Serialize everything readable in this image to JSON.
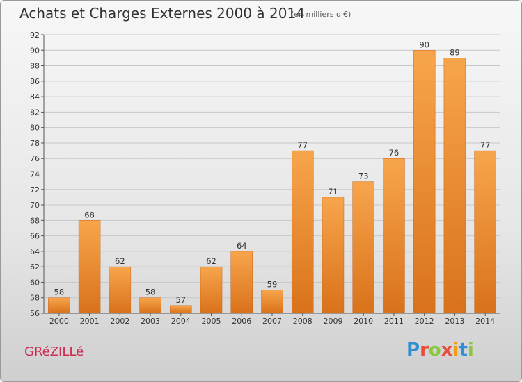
{
  "header": {
    "title": "Achats et Charges Externes 2000 à 2014",
    "units": "(en milliers d'€)"
  },
  "footer": {
    "commune": "GRéZILLé",
    "logo_letters": [
      "P",
      "r",
      "o",
      "x",
      "i",
      "t",
      "i"
    ],
    "logo_colors": [
      "#2f8fd1",
      "#e74c3c",
      "#8cc63f",
      "#e74c3c",
      "#f39c12",
      "#2f8fd1",
      "#8cc63f"
    ]
  },
  "colors": {
    "bar_top": "#f7a54c",
    "bar_bottom": "#d9721a",
    "grid": "#c8c8c8",
    "axis": "#555555",
    "commune_text": "#cc2a4f"
  },
  "chart_data": {
    "type": "bar",
    "title": "Achats et Charges Externes 2000 à 2014",
    "subtitle": "(en milliers d'€)",
    "xlabel": "",
    "ylabel": "",
    "categories": [
      "2000",
      "2001",
      "2002",
      "2003",
      "2004",
      "2005",
      "2006",
      "2007",
      "2008",
      "2009",
      "2010",
      "2011",
      "2012",
      "2013",
      "2014"
    ],
    "values": [
      58,
      68,
      62,
      58,
      57,
      62,
      64,
      59,
      77,
      71,
      73,
      76,
      90,
      89,
      77
    ],
    "ylim": [
      56,
      92
    ],
    "yticks": [
      56,
      58,
      60,
      62,
      64,
      66,
      68,
      70,
      72,
      74,
      76,
      78,
      80,
      82,
      84,
      86,
      88,
      90,
      92
    ],
    "grid": true,
    "data_labels": true
  }
}
